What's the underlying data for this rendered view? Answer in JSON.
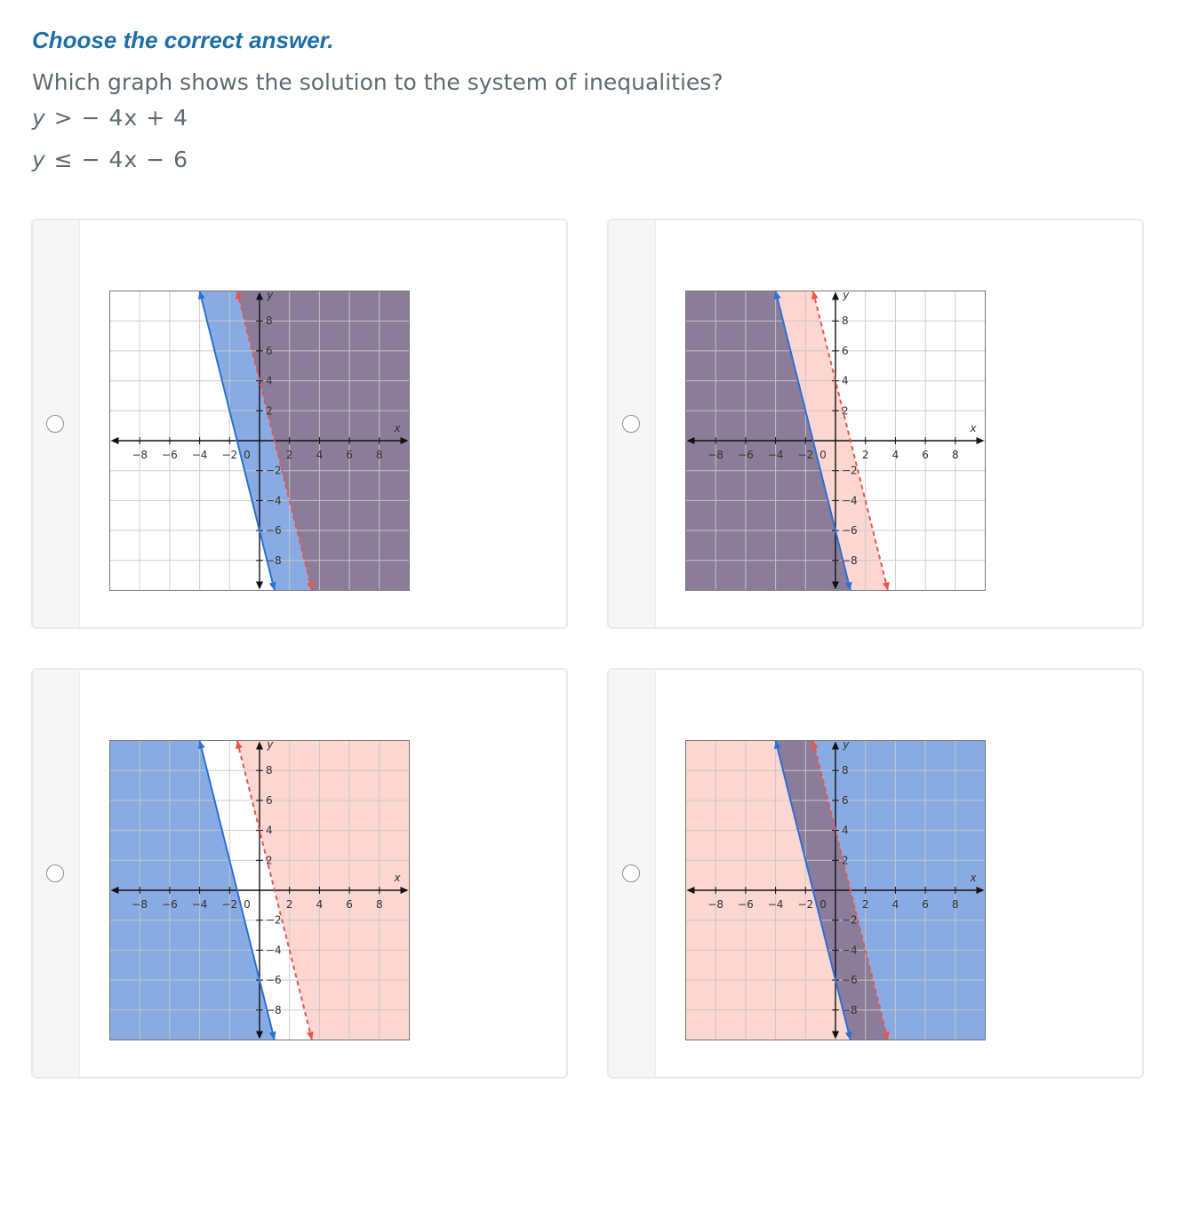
{
  "prompt": {
    "instruction": "Choose the correct answer.",
    "question": "Which graph shows the solution to the system of inequalities?",
    "inequality_1": {
      "lhs": "y",
      "rel": ">",
      "rhs": "− 4x + 4"
    },
    "inequality_2": {
      "lhs": "y",
      "rel": "≤",
      "rhs": "− 4x − 6"
    }
  },
  "axis_labels": {
    "x": "x",
    "y": "y"
  },
  "x_ticks": [
    "−8",
    "−6",
    "−4",
    "−2",
    "2",
    "4",
    "6",
    "8"
  ],
  "y_ticks": [
    "8",
    "6",
    "4",
    "2",
    "−2",
    "−4",
    "−6",
    "−8"
  ],
  "origin_label": "0",
  "colors": {
    "blue_fill": "#87abe2",
    "red_fill": "#fab4aa",
    "overlap_fill": "#8b7d9a",
    "blue_line": "#2e6fd2",
    "red_line": "#e8574b",
    "grid": "#c8c8c8"
  },
  "options": [
    {
      "id": "a",
      "selected": false,
      "blue_shade": "right",
      "red_shade": "right"
    },
    {
      "id": "b",
      "selected": false,
      "blue_shade": "left",
      "red_shade": "left"
    },
    {
      "id": "c",
      "selected": false,
      "blue_shade": "left",
      "red_shade": "right"
    },
    {
      "id": "d",
      "selected": false,
      "blue_shade": "right",
      "red_shade": "left"
    }
  ],
  "chart_data": [
    {
      "type": "line",
      "option": "a",
      "xlim": [
        -10,
        10
      ],
      "ylim": [
        -10,
        10
      ],
      "grid": true,
      "series": [
        {
          "equation": "y = -4x - 6",
          "style": "solid",
          "color": "#2e6fd2",
          "x": [
            -4,
            1
          ],
          "y": [
            10,
            -10
          ],
          "shade": "right"
        },
        {
          "equation": "y = -4x + 4",
          "style": "dashed",
          "color": "#e8574b",
          "x": [
            -1.5,
            3.5
          ],
          "y": [
            10,
            -10
          ],
          "shade": "right"
        }
      ]
    },
    {
      "type": "line",
      "option": "b",
      "xlim": [
        -10,
        10
      ],
      "ylim": [
        -10,
        10
      ],
      "grid": true,
      "series": [
        {
          "equation": "y = -4x - 6",
          "style": "solid",
          "color": "#2e6fd2",
          "x": [
            -4,
            1
          ],
          "y": [
            10,
            -10
          ],
          "shade": "left"
        },
        {
          "equation": "y = -4x + 4",
          "style": "dashed",
          "color": "#e8574b",
          "x": [
            -1.5,
            3.5
          ],
          "y": [
            10,
            -10
          ],
          "shade": "left"
        }
      ]
    },
    {
      "type": "line",
      "option": "c",
      "xlim": [
        -10,
        10
      ],
      "ylim": [
        -10,
        10
      ],
      "grid": true,
      "series": [
        {
          "equation": "y = -4x - 6",
          "style": "solid",
          "color": "#2e6fd2",
          "x": [
            -4,
            1
          ],
          "y": [
            10,
            -10
          ],
          "shade": "left"
        },
        {
          "equation": "y = -4x + 4",
          "style": "dashed",
          "color": "#e8574b",
          "x": [
            -1.5,
            3.5
          ],
          "y": [
            10,
            -10
          ],
          "shade": "right"
        }
      ]
    },
    {
      "type": "line",
      "option": "d",
      "xlim": [
        -10,
        10
      ],
      "ylim": [
        -10,
        10
      ],
      "grid": true,
      "series": [
        {
          "equation": "y = -4x - 6",
          "style": "solid",
          "color": "#2e6fd2",
          "x": [
            -4,
            1
          ],
          "y": [
            10,
            -10
          ],
          "shade": "right"
        },
        {
          "equation": "y = -4x + 4",
          "style": "dashed",
          "color": "#e8574b",
          "x": [
            -1.5,
            3.5
          ],
          "y": [
            10,
            -10
          ],
          "shade": "left"
        }
      ]
    }
  ]
}
